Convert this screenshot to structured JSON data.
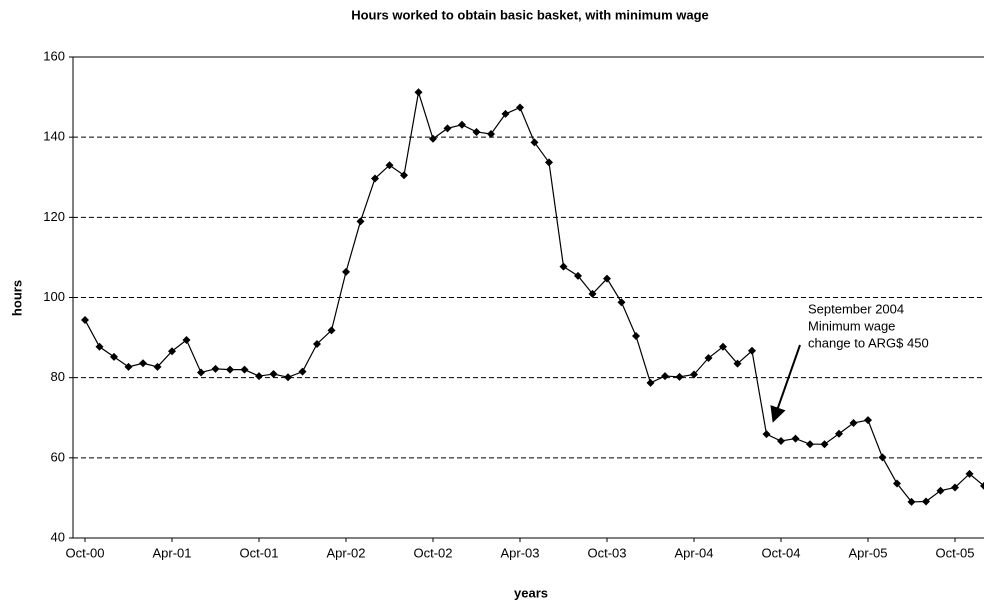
{
  "chart_data": {
    "type": "line",
    "title": "Hours worked to obtain basic basket, with minimum wage",
    "x_label": "years",
    "y_label": "hours",
    "annotation": [
      "September 2004",
      "Minimum wage",
      "change to ARG$ 450"
    ],
    "categories": [
      "Oct-00",
      null,
      null,
      null,
      null,
      null,
      "Apr-01",
      null,
      null,
      null,
      null,
      null,
      "Oct-01",
      null,
      null,
      null,
      null,
      null,
      "Apr-02",
      null,
      null,
      null,
      null,
      null,
      "Oct-02",
      null,
      null,
      null,
      null,
      null,
      "Apr-03",
      null,
      null,
      null,
      null,
      null,
      "Oct-03",
      null,
      null,
      null,
      null,
      null,
      "Apr-04",
      null,
      null,
      null,
      null,
      null,
      "Oct-04",
      null,
      null,
      null,
      null,
      null,
      "Apr-05",
      null,
      null,
      null,
      null,
      null,
      "Oct-05",
      null,
      null
    ],
    "series": [
      {
        "name": "hours",
        "color": "#000000",
        "values": [
          94.4,
          87.7,
          85.2,
          82.7,
          83.6,
          82.7,
          86.6,
          89.4,
          81.3,
          82.2,
          82.0,
          82.0,
          80.4,
          80.9,
          80.1,
          81.5,
          88.4,
          91.8,
          106.4,
          119.0,
          129.7,
          133.0,
          130.5,
          151.2,
          139.6,
          142.2,
          143.1,
          141.3,
          140.8,
          145.8,
          147.4,
          138.7,
          133.7,
          107.7,
          105.4,
          100.9,
          104.7,
          98.8,
          90.4,
          78.7,
          80.4,
          80.2,
          80.8,
          84.9,
          87.7,
          83.5,
          86.7,
          65.9,
          64.2,
          64.8,
          63.4,
          63.4,
          66.0,
          68.7,
          69.4,
          60.1,
          53.6,
          49.0,
          49.1,
          51.8,
          52.6,
          56.0,
          53.0
        ]
      }
    ],
    "ylim": [
      40,
      160
    ],
    "yticks": [
      40,
      60,
      80,
      100,
      120,
      140,
      160
    ],
    "grid": true
  }
}
